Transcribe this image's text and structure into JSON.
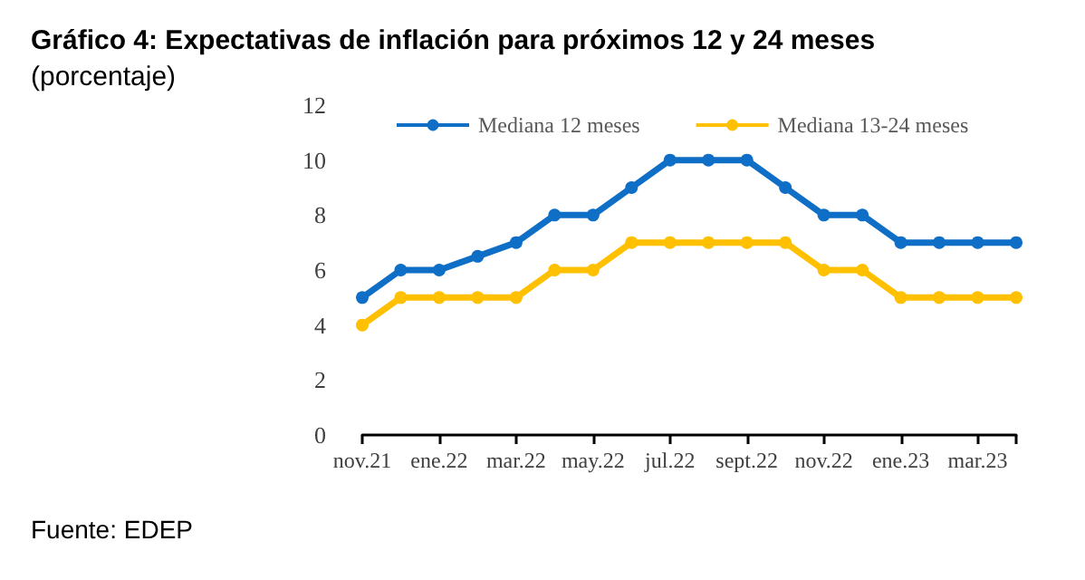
{
  "chart_data": {
    "type": "line",
    "title": "Gráfico 4: Expectativas de inflación para próximos 12 y 24 meses",
    "subtitle": "(porcentaje)",
    "annotations": [
      "Fuente: EDEP"
    ],
    "categories": [
      "nov.21",
      null,
      "ene.22",
      null,
      "mar.22",
      null,
      "may.22",
      null,
      "jul.22",
      null,
      "sept.22",
      null,
      "nov.22",
      null,
      "ene.23",
      null,
      "mar.23",
      null
    ],
    "series": [
      {
        "name": "Mediana 12 meses",
        "color": "#0f6fc6",
        "values": [
          5,
          6,
          6,
          6.5,
          7,
          8,
          8,
          9,
          10,
          10,
          10,
          9,
          8,
          8,
          7,
          7,
          7,
          7
        ]
      },
      {
        "name": "Mediana 13-24 meses",
        "color": "#ffc000",
        "values": [
          4,
          5,
          5,
          5,
          5,
          6,
          6,
          7,
          7,
          7,
          7,
          7,
          6,
          6,
          5,
          5,
          5,
          5
        ]
      }
    ],
    "ylim": [
      0,
      12
    ],
    "yticks": [
      0,
      2,
      4,
      6,
      8,
      10,
      12
    ],
    "grid": false,
    "legend": "top",
    "marker": "circle",
    "line_style": "solid"
  }
}
